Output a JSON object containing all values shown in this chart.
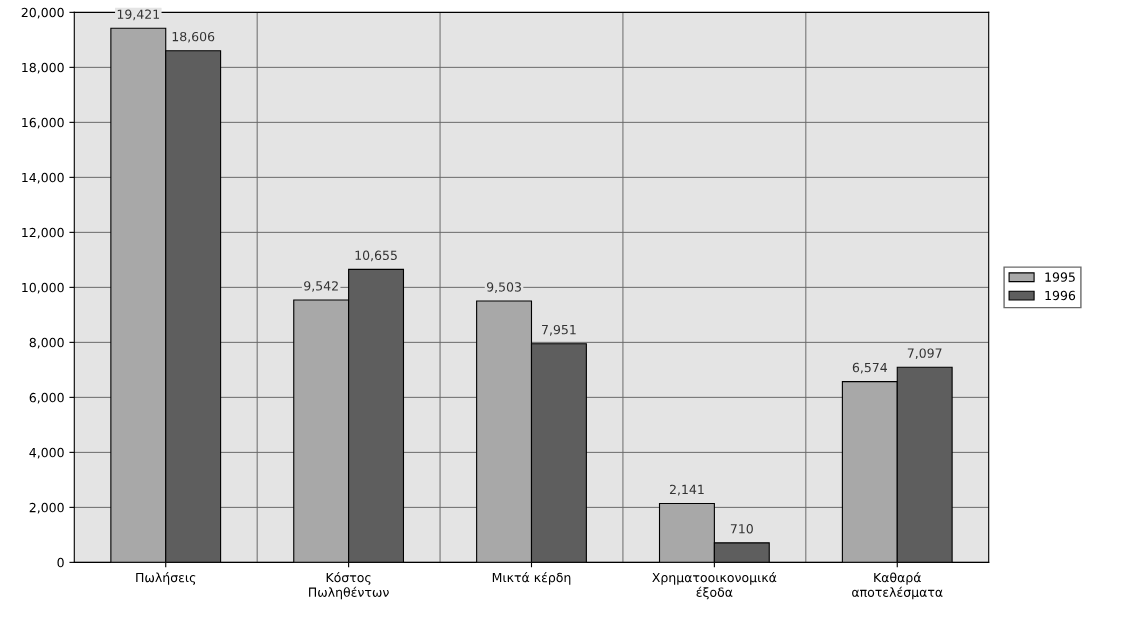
{
  "chart_data": {
    "type": "bar",
    "categories": [
      "Πωλήσεις",
      "Κόστος\nΠωληθέντων",
      "Μικτά κέρδη",
      "Χρηματοοικονομικά\nέξοδα",
      "Καθαρά\nαποτελέσματα"
    ],
    "series": [
      {
        "name": "1995",
        "color": "#a8a8a8",
        "values": [
          19421,
          9542,
          9503,
          2141,
          6574
        ],
        "value_labels": [
          "19,421",
          "9,542",
          "9,503",
          "2,141",
          "6,574"
        ]
      },
      {
        "name": "1996",
        "color": "#5e5e5e",
        "values": [
          18606,
          10655,
          7951,
          710,
          7097
        ],
        "value_labels": [
          "18,606",
          "10,655",
          "7,951",
          "710",
          "7,097"
        ]
      }
    ],
    "ylim": [
      0,
      20000
    ],
    "yticks": [
      {
        "value": 0,
        "label": "0"
      },
      {
        "value": 2000,
        "label": "2,000"
      },
      {
        "value": 4000,
        "label": "4,000"
      },
      {
        "value": 6000,
        "label": "6,000"
      },
      {
        "value": 8000,
        "label": "8,000"
      },
      {
        "value": 10000,
        "label": "10,000"
      },
      {
        "value": 12000,
        "label": "12,000"
      },
      {
        "value": 14000,
        "label": "14,000"
      },
      {
        "value": 16000,
        "label": "16,000"
      },
      {
        "value": 18000,
        "label": "18,000"
      },
      {
        "value": 20000,
        "label": "20,000"
      }
    ],
    "grid": "y",
    "legend": "right"
  }
}
